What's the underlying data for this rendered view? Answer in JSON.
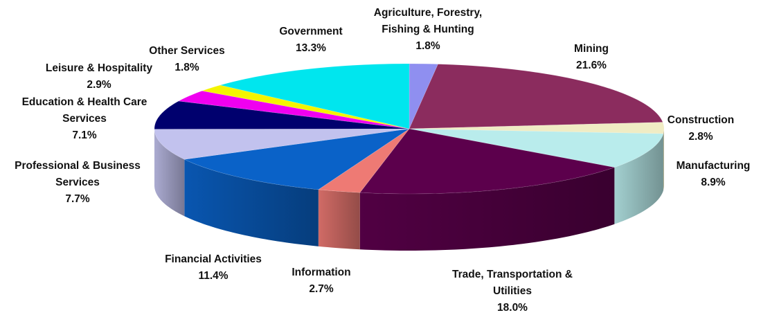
{
  "chart_data": {
    "type": "pie",
    "title": "",
    "slices": [
      {
        "label": "Agriculture, Forestry, Fishing & Hunting",
        "label_lines": [
          "Agriculture, Forestry,",
          "Fishing & Hunting"
        ],
        "value": 1.8,
        "value_label": "1.8%",
        "color": "#8f8ff0"
      },
      {
        "label": "Mining",
        "label_lines": [
          "Mining"
        ],
        "value": 21.6,
        "value_label": "21.6%",
        "color": "#8b2c5e"
      },
      {
        "label": "Construction",
        "label_lines": [
          "Construction"
        ],
        "value": 2.8,
        "value_label": "2.8%",
        "color": "#f0ecc4"
      },
      {
        "label": "Manufacturing",
        "label_lines": [
          "Manufacturing"
        ],
        "value": 8.9,
        "value_label": "8.9%",
        "color": "#b9ecec"
      },
      {
        "label": "Trade, Transportation & Utilities",
        "label_lines": [
          "Trade, Transportation &",
          "Utilities"
        ],
        "value": 18.0,
        "value_label": "18.0%",
        "color": "#5c004c"
      },
      {
        "label": "Information",
        "label_lines": [
          "Information"
        ],
        "value": 2.7,
        "value_label": "2.7%",
        "color": "#ee7a74"
      },
      {
        "label": "Financial Activities",
        "label_lines": [
          "Financial Activities"
        ],
        "value": 11.4,
        "value_label": "11.4%",
        "color": "#0a62c8"
      },
      {
        "label": "Professional & Business Services",
        "label_lines": [
          "Professional & Business",
          "Services"
        ],
        "value": 7.7,
        "value_label": "7.7%",
        "color": "#c2c2ee"
      },
      {
        "label": "Education & Health Care Services",
        "label_lines": [
          "Education & Health Care",
          "Services"
        ],
        "value": 7.1,
        "value_label": "7.1%",
        "color": "#00006e"
      },
      {
        "label": "Leisure & Hospitality",
        "label_lines": [
          "Leisure & Hospitality"
        ],
        "value": 2.9,
        "value_label": "2.9%",
        "color": "#f000f0"
      },
      {
        "label": "Other Services",
        "label_lines": [
          "Other Services"
        ],
        "value": 1.8,
        "value_label": "1.8%",
        "color": "#f4f400"
      },
      {
        "label": "Government",
        "label_lines": [
          "Government"
        ],
        "value": 13.3,
        "value_label": "13.3%",
        "color": "#00e6ee"
      }
    ],
    "start": "12 o'clock",
    "direction": "clockwise",
    "legend": "none",
    "style": "3d"
  }
}
